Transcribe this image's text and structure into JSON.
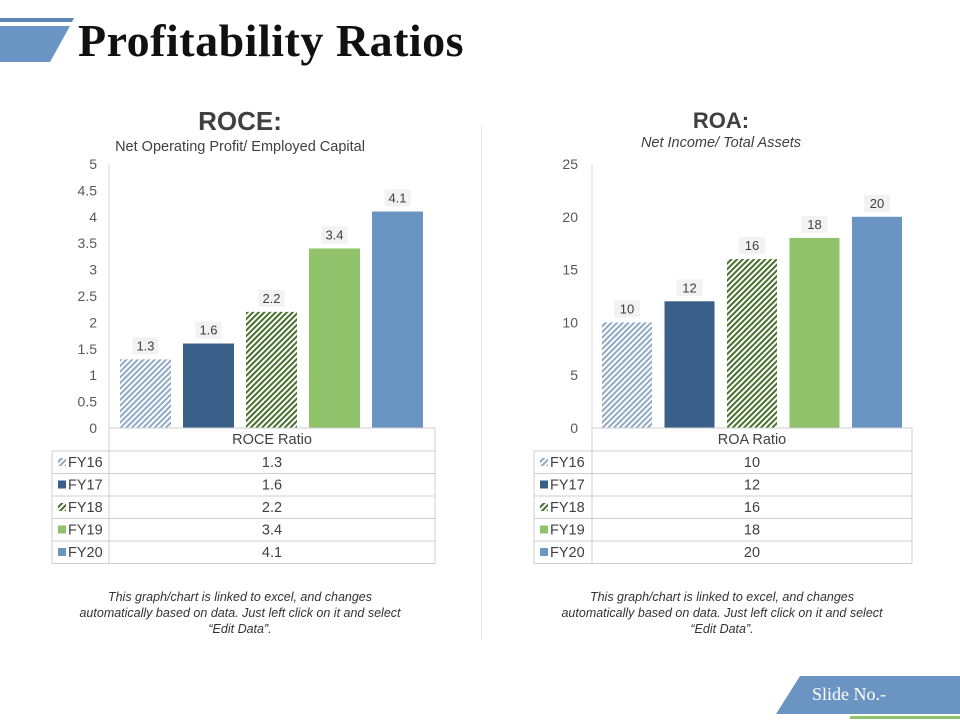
{
  "page": {
    "title": "Profitability Ratios",
    "slide_label": "Slide No.-",
    "colors": {
      "accent_blue": "#6a95c2",
      "dark_blue": "#3a6089",
      "green": "#8fc26b",
      "dark_green": "#47702c"
    }
  },
  "chart_data": [
    {
      "type": "bar",
      "title": "ROCE:",
      "subtitle": "Net Operating Profit/ Employed Capital",
      "category_label": "ROCE Ratio",
      "ylim": [
        0,
        5
      ],
      "ytick_labels": [
        "0",
        "0.5",
        "1",
        "1.5",
        "2",
        "2.5",
        "3",
        "3.5",
        "4",
        "4.5",
        "5"
      ],
      "legend_placement": "bottom (data table)",
      "series": [
        {
          "name": "FY16",
          "value": 1.3,
          "label": "1.3",
          "color": "#8fa9c6",
          "pattern": "hatch"
        },
        {
          "name": "FY17",
          "value": 1.6,
          "label": "1.6",
          "color": "#3a6089",
          "pattern": "solid"
        },
        {
          "name": "FY18",
          "value": 2.2,
          "label": "2.2",
          "color": "#47702c",
          "pattern": "hatch"
        },
        {
          "name": "FY19",
          "value": 3.4,
          "label": "3.4",
          "color": "#8fc26b",
          "pattern": "solid"
        },
        {
          "name": "FY20",
          "value": 4.1,
          "label": "4.1",
          "color": "#6a95c2",
          "pattern": "solid"
        }
      ],
      "note": [
        "This graph/chart is linked to excel, and changes",
        "automatically based on data. Just left click on it and select",
        "“Edit Data”."
      ]
    },
    {
      "type": "bar",
      "title": "ROA:",
      "subtitle": "Net Income/ Total Assets",
      "category_label": "ROA Ratio",
      "ylim": [
        0,
        25
      ],
      "ytick_labels": [
        "0",
        "5",
        "10",
        "15",
        "20",
        "25"
      ],
      "legend_placement": "bottom (data table)",
      "series": [
        {
          "name": "FY16",
          "value": 10,
          "label": "10",
          "color": "#8fa9c6",
          "pattern": "hatch"
        },
        {
          "name": "FY17",
          "value": 12,
          "label": "12",
          "color": "#3a6089",
          "pattern": "solid"
        },
        {
          "name": "FY18",
          "value": 16,
          "label": "16",
          "color": "#47702c",
          "pattern": "hatch"
        },
        {
          "name": "FY19",
          "value": 18,
          "label": "18",
          "color": "#8fc26b",
          "pattern": "solid"
        },
        {
          "name": "FY20",
          "value": 20,
          "label": "20",
          "color": "#6a95c2",
          "pattern": "solid"
        }
      ],
      "note": [
        "This graph/chart is linked to excel, and changes",
        "automatically based on data. Just left click on it and select",
        "“Edit Data”."
      ]
    }
  ]
}
